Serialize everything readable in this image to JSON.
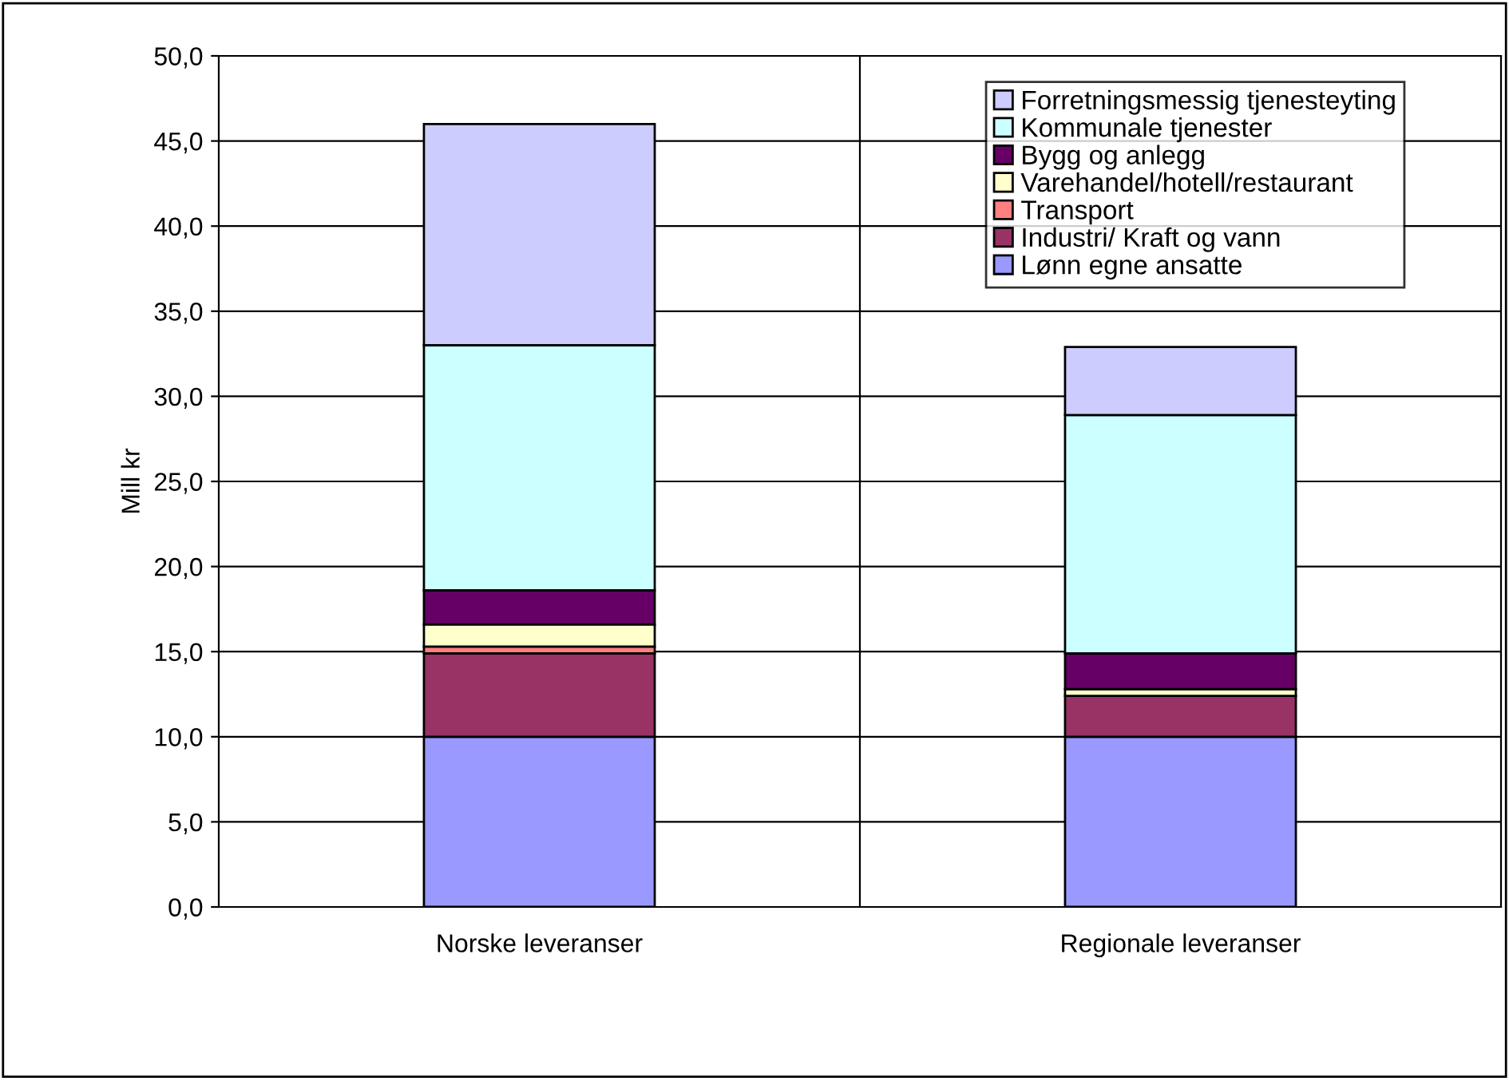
{
  "chart_data": {
    "type": "bar",
    "stacked": true,
    "ylabel": "Mill kr",
    "categories": [
      "Norske leveranser",
      "Regionale leveranser"
    ],
    "ylim": [
      0,
      50
    ],
    "yticks": [
      {
        "value": 0,
        "label": "0,0"
      },
      {
        "value": 5,
        "label": "5,0"
      },
      {
        "value": 10,
        "label": "10,0"
      },
      {
        "value": 15,
        "label": "15,0"
      },
      {
        "value": 20,
        "label": "20,0"
      },
      {
        "value": 25,
        "label": "25,0"
      },
      {
        "value": 30,
        "label": "30,0"
      },
      {
        "value": 35,
        "label": "35,0"
      },
      {
        "value": 40,
        "label": "40,0"
      },
      {
        "value": 45,
        "label": "45,0"
      },
      {
        "value": 50,
        "label": "50,0"
      }
    ],
    "grid": true,
    "legend": "top right",
    "series": [
      {
        "name": "Lønn egne ansatte",
        "color": "#9999ff",
        "values": [
          10.0,
          10.0
        ]
      },
      {
        "name": "Industri/ Kraft og vann",
        "color": "#993366",
        "values": [
          4.9,
          2.4
        ]
      },
      {
        "name": "Transport",
        "color": "#ff8080",
        "values": [
          0.4,
          null
        ]
      },
      {
        "name": "Varehandel/hotell/restaurant",
        "color": "#ffffcc",
        "values": [
          1.3,
          0.4
        ]
      },
      {
        "name": "Bygg og anlegg",
        "color": "#660066",
        "values": [
          2.0,
          2.1
        ]
      },
      {
        "name": "Kommunale tjenester",
        "color": "#ccffff",
        "values": [
          14.4,
          14.0
        ]
      },
      {
        "name": "Forretningsmessig tjenesteyting",
        "color": "#ccccff",
        "values": [
          13.0,
          4.0
        ]
      }
    ]
  }
}
